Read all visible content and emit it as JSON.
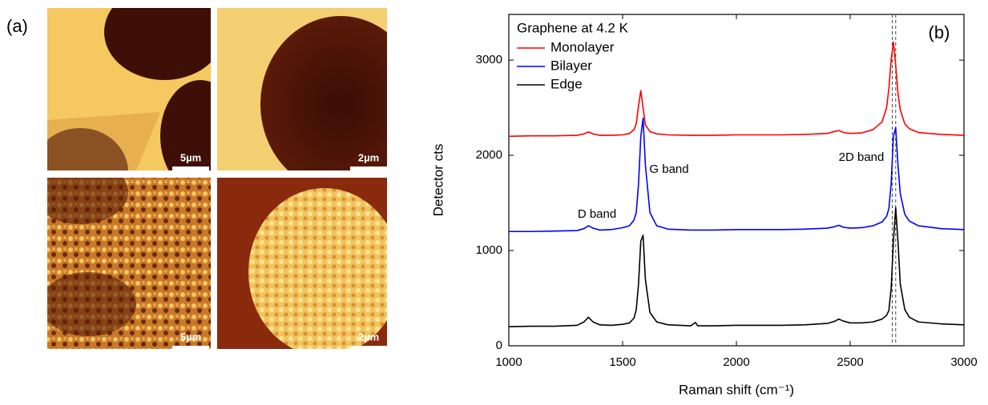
{
  "image_panel": {
    "label": "(a)",
    "scale_bars": [
      "5µm",
      "2µm",
      "5µm",
      "2µm"
    ]
  },
  "chart_data": {
    "type": "line",
    "panel_label": "(b)",
    "legend_title": "Graphene at 4.2 K",
    "xlabel": "Raman shift (cm⁻¹)",
    "ylabel": "Detector cts",
    "xlim": [
      1000,
      3000
    ],
    "xticks": [
      1000,
      1500,
      2000,
      2500,
      3000
    ],
    "ylim": [
      0,
      3480
    ],
    "yticks": [
      0,
      1000,
      2000,
      3000
    ],
    "legend": "upper left",
    "annotations": [
      "D band",
      "G band",
      "2D band"
    ],
    "vlines": [
      2685,
      2700
    ],
    "x": [
      1000,
      1100,
      1200,
      1300,
      1330,
      1350,
      1370,
      1400,
      1450,
      1500,
      1530,
      1550,
      1560,
      1570,
      1580,
      1590,
      1600,
      1620,
      1650,
      1700,
      1800,
      1820,
      1830,
      1900,
      2000,
      2100,
      2200,
      2300,
      2400,
      2430,
      2450,
      2470,
      2500,
      2550,
      2600,
      2640,
      2660,
      2670,
      2680,
      2690,
      2700,
      2710,
      2720,
      2740,
      2760,
      2800,
      2900,
      3000
    ],
    "series": [
      {
        "name": "Monolayer",
        "color": "#ff0000",
        "values": [
          2200,
          2205,
          2205,
          2210,
          2225,
          2245,
          2225,
          2210,
          2210,
          2215,
          2230,
          2270,
          2330,
          2520,
          2680,
          2500,
          2320,
          2250,
          2225,
          2215,
          2210,
          2210,
          2210,
          2210,
          2215,
          2215,
          2215,
          2220,
          2230,
          2250,
          2260,
          2240,
          2230,
          2235,
          2270,
          2350,
          2500,
          2700,
          3000,
          3190,
          2950,
          2650,
          2480,
          2330,
          2280,
          2240,
          2220,
          2210
        ]
      },
      {
        "name": "Bilayer",
        "color": "#0000ff",
        "values": [
          1200,
          1200,
          1205,
          1210,
          1230,
          1260,
          1235,
          1215,
          1220,
          1240,
          1260,
          1320,
          1400,
          1700,
          2200,
          2390,
          1900,
          1400,
          1260,
          1225,
          1215,
          1215,
          1215,
          1215,
          1220,
          1220,
          1220,
          1225,
          1235,
          1250,
          1265,
          1245,
          1235,
          1240,
          1260,
          1300,
          1360,
          1440,
          1700,
          2200,
          2290,
          1900,
          1600,
          1380,
          1310,
          1260,
          1230,
          1220
        ]
      },
      {
        "name": "Edge",
        "color": "#000000",
        "values": [
          200,
          205,
          205,
          215,
          250,
          300,
          250,
          220,
          215,
          225,
          240,
          290,
          380,
          650,
          1100,
          1160,
          700,
          350,
          250,
          220,
          210,
          245,
          210,
          210,
          215,
          215,
          215,
          220,
          235,
          255,
          280,
          260,
          240,
          240,
          250,
          280,
          320,
          370,
          600,
          1100,
          1450,
          1100,
          650,
          380,
          300,
          250,
          230,
          220
        ]
      }
    ]
  }
}
